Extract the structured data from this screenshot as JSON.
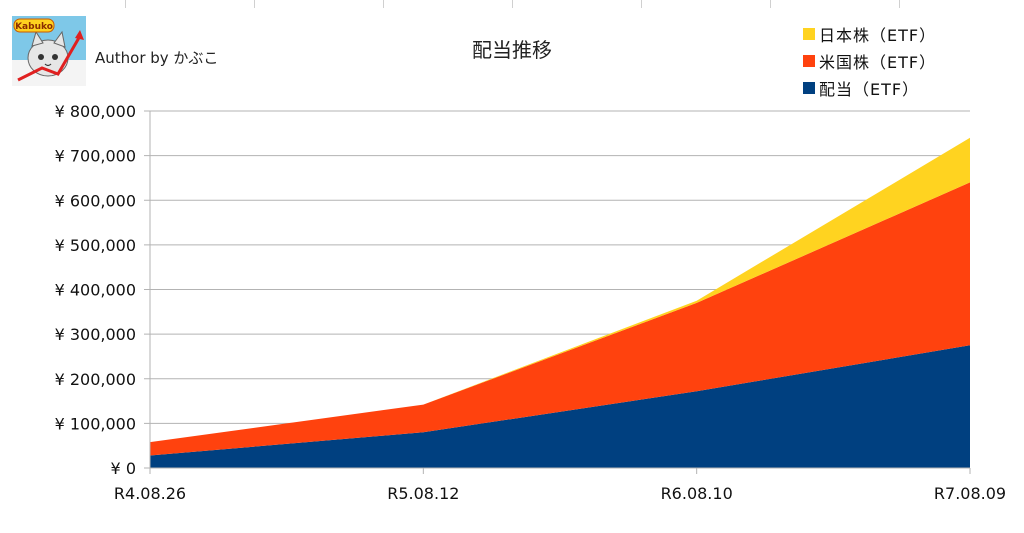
{
  "header": {
    "author": "Author by かぶこ",
    "logo_text": "Kabuko"
  },
  "chart_data": {
    "type": "area",
    "stacked": true,
    "title": "配当推移",
    "xlabel": "",
    "ylabel": "",
    "categories": [
      "R4.08.26",
      "R5.08.12",
      "R6.08.10",
      "R7.08.09"
    ],
    "ylim": [
      0,
      800000
    ],
    "yticks": [
      0,
      100000,
      200000,
      300000,
      400000,
      500000,
      600000,
      700000,
      800000
    ],
    "ytick_labels": [
      "¥ 0",
      "¥ 100,000",
      "¥ 200,000",
      "¥ 300,000",
      "¥ 400,000",
      "¥ 500,000",
      "¥ 600,000",
      "¥ 700,000",
      "¥ 800,000"
    ],
    "grid": true,
    "legend_position": "top-right",
    "series": [
      {
        "name": "配当（ETF）",
        "color": "#004080",
        "values": [
          28000,
          80000,
          172000,
          275000
        ]
      },
      {
        "name": "米国株（ETF）",
        "color": "#ff420e",
        "values": [
          30000,
          62000,
          198000,
          365000
        ]
      },
      {
        "name": "日本株（ETF）",
        "color": "#ffd320",
        "values": [
          0,
          0,
          5000,
          100000
        ]
      }
    ]
  }
}
